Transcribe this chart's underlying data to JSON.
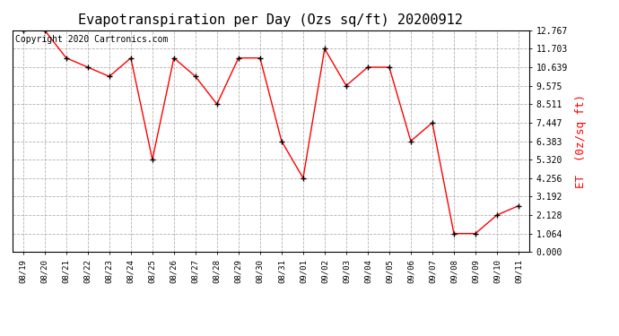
{
  "title": "Evapotranspiration per Day (Ozs sq/ft) 20200912",
  "ylabel": "ET  (0z/sq ft)",
  "copyright": "Copyright 2020 Cartronics.com",
  "dates": [
    "08/19",
    "08/20",
    "08/21",
    "08/22",
    "08/23",
    "08/24",
    "08/25",
    "08/26",
    "08/27",
    "08/28",
    "08/29",
    "08/30",
    "08/31",
    "09/01",
    "09/02",
    "09/03",
    "09/04",
    "09/05",
    "09/06",
    "09/07",
    "09/08",
    "09/09",
    "09/10",
    "09/11"
  ],
  "values": [
    12.767,
    12.767,
    11.171,
    10.639,
    10.107,
    11.171,
    5.32,
    11.171,
    10.107,
    8.511,
    11.171,
    11.171,
    6.383,
    4.256,
    11.703,
    9.575,
    10.639,
    10.639,
    6.383,
    7.447,
    1.064,
    1.064,
    2.128,
    2.66
  ],
  "yticks": [
    0.0,
    1.064,
    2.128,
    3.192,
    4.256,
    5.32,
    6.383,
    7.447,
    8.511,
    9.575,
    10.639,
    11.703,
    12.767
  ],
  "ylim": [
    0.0,
    12.767
  ],
  "line_color": "red",
  "marker_color": "black",
  "background_color": "white",
  "grid_color": "#aaaaaa",
  "title_fontsize": 11,
  "ylabel_color": "red",
  "ylabel_fontsize": 9,
  "copyright_color": "black",
  "copyright_fontsize": 7
}
